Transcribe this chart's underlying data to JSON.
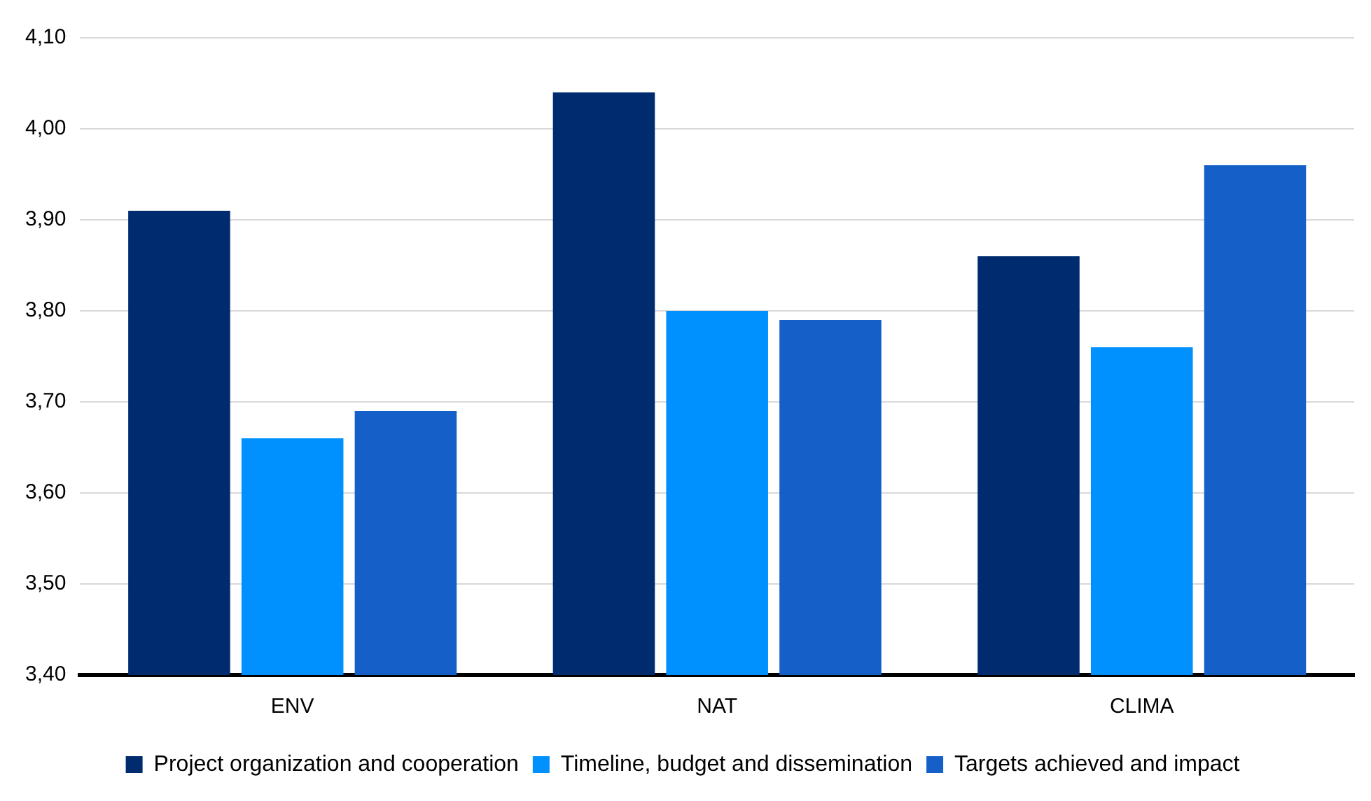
{
  "chart_data": {
    "type": "bar",
    "categories": [
      "ENV",
      "NAT",
      "CLIMA"
    ],
    "series": [
      {
        "name": "Project organization and cooperation",
        "color": "#002b6e",
        "values": [
          3.91,
          4.04,
          3.86
        ]
      },
      {
        "name": "Timeline, budget and dissemination",
        "color": "#0091ff",
        "values": [
          3.66,
          3.8,
          3.76
        ]
      },
      {
        "name": "Targets achieved and impact",
        "color": "#1560c8",
        "values": [
          3.69,
          3.79,
          3.96
        ]
      }
    ],
    "ylim": [
      3.4,
      4.1
    ],
    "yticks": [
      {
        "value": 3.4,
        "label": "3,40"
      },
      {
        "value": 3.5,
        "label": "3,50"
      },
      {
        "value": 3.6,
        "label": "3,60"
      },
      {
        "value": 3.7,
        "label": "3,70"
      },
      {
        "value": 3.8,
        "label": "3,80"
      },
      {
        "value": 3.9,
        "label": "3,90"
      },
      {
        "value": 4.0,
        "label": "4,00"
      },
      {
        "value": 4.1,
        "label": "4,10"
      }
    ],
    "grid": "y",
    "legend": "bottom"
  }
}
